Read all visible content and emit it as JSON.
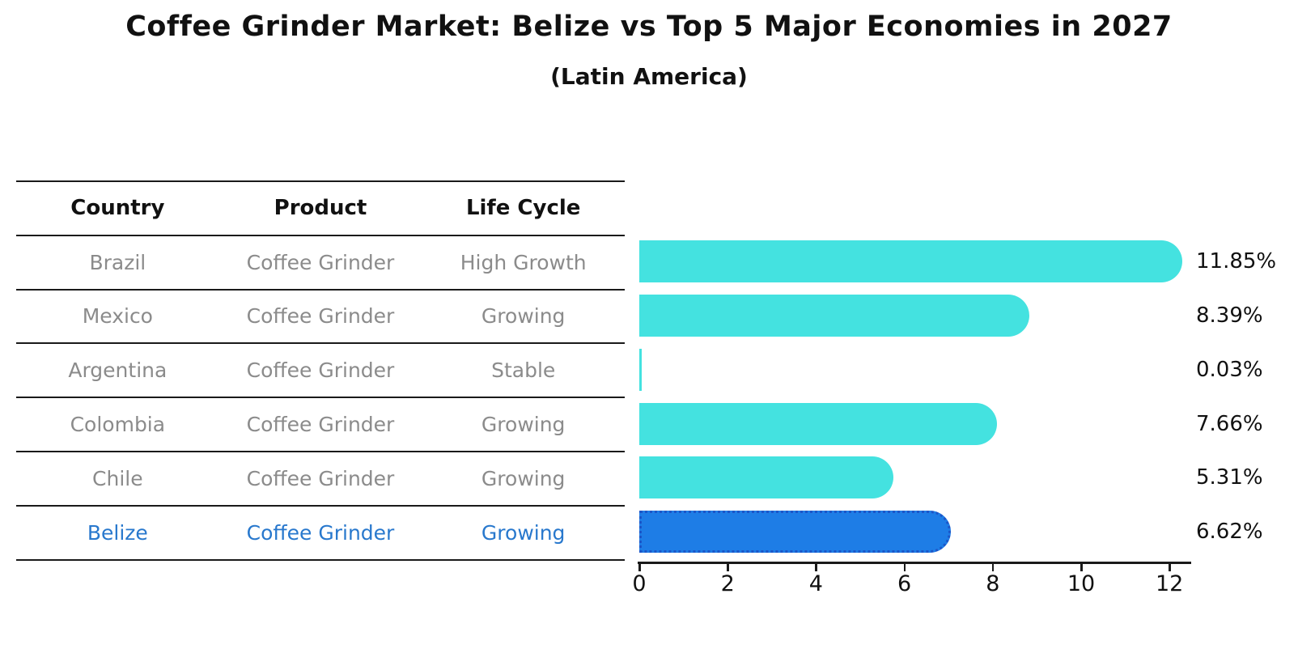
{
  "title": "Coffee Grinder Market: Belize vs Top 5 Major Economies in 2027",
  "subtitle": "(Latin America)",
  "table": {
    "headers": [
      "Country",
      "Product",
      "Life Cycle"
    ],
    "rows": [
      {
        "country": "Brazil",
        "product": "Coffee Grinder",
        "life_cycle": "High Growth",
        "highlight": false
      },
      {
        "country": "Mexico",
        "product": "Coffee Grinder",
        "life_cycle": "Growing",
        "highlight": false
      },
      {
        "country": "Argentina",
        "product": "Coffee Grinder",
        "life_cycle": "Stable",
        "highlight": false
      },
      {
        "country": "Colombia",
        "product": "Coffee Grinder",
        "life_cycle": "Growing",
        "highlight": false
      },
      {
        "country": "Chile",
        "product": "Coffee Grinder",
        "life_cycle": "Growing",
        "highlight": false
      },
      {
        "country": "Belize",
        "product": "Coffee Grinder",
        "life_cycle": "Growing",
        "highlight": true
      }
    ]
  },
  "chart_data": {
    "type": "bar",
    "orientation": "horizontal",
    "title": "Coffee Grinder Market: Belize vs Top 5 Major Economies in 2027",
    "subtitle": "(Latin America)",
    "categories": [
      "Brazil",
      "Mexico",
      "Argentina",
      "Colombia",
      "Chile",
      "Belize"
    ],
    "values": [
      11.85,
      8.39,
      0.03,
      7.66,
      5.31,
      6.62
    ],
    "value_labels": [
      "11.85%",
      "8.39%",
      "0.03%",
      "7.66%",
      "5.31%",
      "6.62%"
    ],
    "unit": "%",
    "xlabel": "",
    "ylabel": "",
    "xlim": [
      0,
      12.6
    ],
    "x_ticks": [
      0,
      2,
      4,
      6,
      8,
      10,
      12
    ],
    "grid": false,
    "legend": false,
    "highlight_category": "Belize"
  },
  "colors": {
    "bar_default": "#44e2e0",
    "bar_highlight": "#1e7de6",
    "bar_highlight_border": "#1c56c8",
    "highlight_text": "#2878cd",
    "row_text": "#8b8b8b",
    "axis_text": "#111111"
  }
}
